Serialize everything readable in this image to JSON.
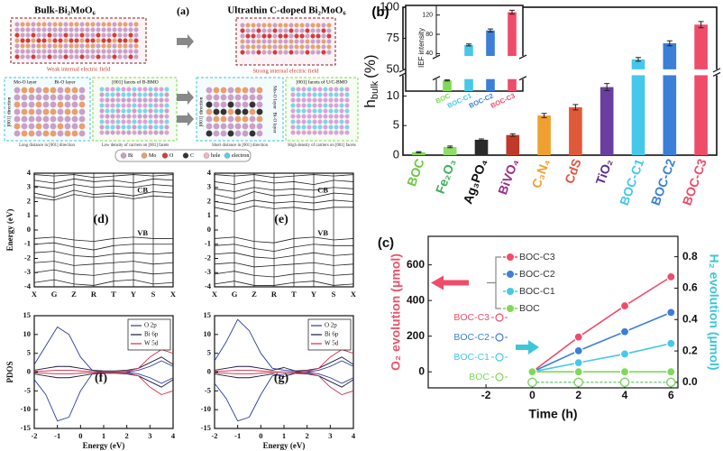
{
  "diagram": {
    "panel_label": "(a)",
    "titles": [
      "Bulk-Bi₂MoO₆",
      "Ultrathin C-doped Bi₂MoO₆"
    ],
    "fields": [
      "Weak internal electric field",
      "Strong internal electric field"
    ],
    "layers": [
      "Mo-O layer",
      "Bi-O layer",
      "Mo-O layer",
      "Bi-O layer"
    ],
    "direction": [
      "[001] direction",
      "[001] direction"
    ],
    "facets": [
      "[001] facets of B-BMO",
      "[001] facets of U/C-BMO"
    ],
    "captions": [
      "Long distance in [001] direction",
      "Low density of carriers on [001] facets",
      "Short distance in [001] direction",
      "High density of carriers on [001] facets"
    ],
    "legend": [
      "Bi",
      "Mo",
      "O",
      "C",
      "hole",
      "electron"
    ]
  },
  "chart_data": [
    {
      "type": "bar",
      "panel_label": "(b)",
      "y_label": {
        "symbol": "h",
        "subscript": "bulk",
        "unit": "(%)"
      },
      "categories": [
        "BOC",
        "Fe₂O₃",
        "Ag₃PO₄",
        "BiVO₄",
        "C₃N₄",
        "CdS",
        "TiO₂",
        "BOC-C1",
        "BOC-C2",
        "BOC-C3"
      ],
      "values": [
        0.5,
        1.4,
        2.6,
        3.4,
        6.7,
        8.1,
        11.5,
        58,
        71,
        86
      ],
      "errors": [
        0.1,
        0.15,
        0.15,
        0.2,
        0.35,
        0.45,
        0.6,
        1.5,
        2,
        2.5
      ],
      "colors": [
        "#7ed957",
        "#8fdc6a",
        "#2a2a2a",
        "#c0392b",
        "#f0a030",
        "#e05a3a",
        "#6a3ea1",
        "#45c8ea",
        "#3b7fd6",
        "#ef4c6a"
      ],
      "label_colors": [
        "#6cc644",
        "#3fae5a",
        "#111111",
        "#9b2d8a",
        "#f0a030",
        "#e0553a",
        "#5b2d91",
        "#45c8ea",
        "#3b7fd6",
        "#ef4c6a"
      ],
      "ylim": [
        0,
        100
      ],
      "y_break": [
        13.5,
        50
      ],
      "yticks": [
        0,
        5,
        10,
        50,
        75,
        100
      ]
    },
    {
      "type": "bar",
      "y_label": "IEF intensity",
      "categories": [
        "BOC",
        "BOC-C1",
        "BOC-C2",
        "BOC-C3"
      ],
      "values": [
        18,
        58,
        88,
        126
      ],
      "errors": [
        1,
        2,
        3,
        4
      ],
      "colors": [
        "#7ed957",
        "#45c8ea",
        "#3b7fd6",
        "#ef4c6a"
      ],
      "ylim": [
        0,
        140
      ],
      "y_break": [
        20,
        35
      ],
      "yticks": [
        40,
        80,
        120
      ]
    },
    {
      "type": "line",
      "panel_label": "(c)",
      "x_label": "Time (h)",
      "y_label": "O₂ evolution (μmol)",
      "y_label_color": "#e8546b",
      "y2_label": "H₂ evolution (μmol)",
      "y2_label_color": "#3cc7d8",
      "x": [
        0,
        2,
        4,
        6
      ],
      "xlim": [
        -4.5,
        6.3
      ],
      "xticks": [
        -2,
        0,
        2,
        4,
        6
      ],
      "ylim": [
        -90,
        760
      ],
      "yticks": [
        0,
        200,
        400,
        600
      ],
      "y2lim": [
        -0.035,
        0.93
      ],
      "y2ticks": [
        {
          "value": 0,
          "label": "0.0"
        },
        0.2,
        0.4,
        0.6,
        0.8
      ],
      "legend": "center",
      "series": [
        {
          "name": "BOC-C3",
          "color": "#ef4c6a",
          "marker": "filled",
          "values": [
            0,
            195,
            370,
            533
          ]
        },
        {
          "name": "BOC-C2",
          "color": "#3b7fd6",
          "marker": "filled",
          "values": [
            0,
            118,
            225,
            333
          ]
        },
        {
          "name": "BOC-C1",
          "color": "#45c8ea",
          "marker": "filled",
          "values": [
            0,
            51,
            100,
            159
          ]
        },
        {
          "name": "BOC",
          "color": "#7ed957",
          "marker": "filled",
          "values": [
            0,
            0,
            0,
            0
          ]
        },
        {
          "name": "BOC-C3",
          "color": "#ef4c6a",
          "marker": "open",
          "axis": "y2",
          "values": [
            0,
            0,
            0,
            0
          ]
        },
        {
          "name": "BOC-C2",
          "color": "#3b7fd6",
          "marker": "open",
          "axis": "y2",
          "values": [
            0,
            0,
            0,
            0
          ]
        },
        {
          "name": "BOC-C1",
          "color": "#45c8ea",
          "marker": "open",
          "axis": "y2",
          "values": [
            0,
            0,
            0,
            0
          ]
        },
        {
          "name": "BOC",
          "color": "#7ed957",
          "marker": "open",
          "axis": "y2",
          "values": [
            0,
            0,
            0,
            0
          ]
        }
      ]
    },
    {
      "type": "line",
      "panel_label": "(d)",
      "y_label": "Energy (eV)",
      "categories": [
        "X",
        "G",
        "Z",
        "R",
        "T",
        "Y",
        "S",
        "X"
      ],
      "ylim": [
        -4,
        4
      ],
      "yticks": [
        -4,
        -3,
        -2,
        -1,
        0,
        1,
        2,
        3,
        4
      ],
      "grid": true,
      "annotations": [
        "CB",
        "VB"
      ],
      "series": [
        {
          "color": "#222222",
          "values": [
            3.9,
            3.8,
            3.9,
            3.7,
            3.8,
            3.9,
            3.8,
            3.9
          ]
        },
        {
          "color": "#222222",
          "values": [
            3.5,
            3.3,
            3.6,
            3.4,
            3.5,
            3.3,
            3.6,
            3.5
          ]
        },
        {
          "color": "#222222",
          "values": [
            3.1,
            2.9,
            3.2,
            3.0,
            3.1,
            3.0,
            3.2,
            3.1
          ]
        },
        {
          "color": "#222222",
          "values": [
            2.6,
            2.3,
            2.8,
            2.5,
            2.6,
            2.4,
            2.7,
            2.6
          ]
        },
        {
          "color": "#222222",
          "values": [
            2.3,
            2.1,
            2.5,
            2.3,
            2.4,
            2.2,
            2.4,
            2.3
          ]
        },
        {
          "color": "#222222",
          "values": [
            -0.6,
            -0.5,
            -0.7,
            -0.8,
            -0.6,
            -0.5,
            -0.6,
            -0.6
          ]
        },
        {
          "color": "#222222",
          "values": [
            -1.0,
            -0.9,
            -1.2,
            -1.4,
            -1.1,
            -1.0,
            -1.0,
            -1.0
          ]
        },
        {
          "color": "#222222",
          "values": [
            -1.6,
            -1.5,
            -1.8,
            -1.9,
            -1.7,
            -1.6,
            -1.7,
            -1.6
          ]
        },
        {
          "color": "#222222",
          "values": [
            -2.3,
            -2.2,
            -2.5,
            -2.4,
            -2.3,
            -2.2,
            -2.4,
            -2.3
          ]
        },
        {
          "color": "#222222",
          "values": [
            -3.0,
            -2.8,
            -3.1,
            -3.2,
            -3.0,
            -2.9,
            -3.1,
            -3.0
          ]
        },
        {
          "color": "#222222",
          "values": [
            -3.7,
            -3.5,
            -3.8,
            -3.9,
            -3.6,
            -3.5,
            -3.8,
            -3.7
          ]
        }
      ]
    },
    {
      "type": "line",
      "panel_label": "(e)",
      "categories": [
        "X",
        "G",
        "Z",
        "R",
        "T",
        "Y",
        "S",
        "X"
      ],
      "ylim": [
        -4,
        4
      ],
      "yticks": [
        -4,
        -3,
        -2,
        -1,
        0,
        1,
        2,
        3,
        4
      ],
      "grid": true,
      "annotations": [
        "CB",
        "VB"
      ],
      "series": [
        {
          "color": "#222222",
          "values": [
            3.9,
            3.8,
            3.9,
            3.7,
            3.8,
            3.9,
            3.8,
            3.9
          ]
        },
        {
          "color": "#222222",
          "values": [
            3.4,
            3.2,
            3.5,
            3.3,
            3.4,
            3.2,
            3.5,
            3.4
          ]
        },
        {
          "color": "#222222",
          "values": [
            2.9,
            2.7,
            3.0,
            2.8,
            2.9,
            2.8,
            3.0,
            2.9
          ]
        },
        {
          "color": "#222222",
          "values": [
            2.5,
            2.2,
            2.7,
            2.4,
            2.5,
            2.3,
            2.6,
            2.5
          ]
        },
        {
          "color": "#222222",
          "values": [
            2.0,
            1.8,
            2.1,
            1.9,
            2.0,
            1.9,
            2.1,
            2.0
          ]
        },
        {
          "color": "#222222",
          "values": [
            1.6,
            1.3,
            1.7,
            1.5,
            1.6,
            1.4,
            1.6,
            1.6
          ]
        },
        {
          "color": "#222222",
          "values": [
            -0.6,
            -0.5,
            -0.8,
            -0.9,
            -0.6,
            -0.5,
            -0.7,
            -0.6
          ]
        },
        {
          "color": "#222222",
          "values": [
            -1.1,
            -1.0,
            -1.3,
            -1.5,
            -1.2,
            -1.0,
            -1.1,
            -1.1
          ]
        },
        {
          "color": "#222222",
          "values": [
            -1.7,
            -1.6,
            -1.9,
            -2.0,
            -1.8,
            -1.6,
            -1.8,
            -1.7
          ]
        },
        {
          "color": "#222222",
          "values": [
            -2.4,
            -2.3,
            -2.6,
            -2.5,
            -2.4,
            -2.3,
            -2.5,
            -2.4
          ]
        },
        {
          "color": "#222222",
          "values": [
            -3.1,
            -2.9,
            -3.2,
            -3.3,
            -3.1,
            -3.0,
            -3.2,
            -3.1
          ]
        },
        {
          "color": "#222222",
          "values": [
            -3.8,
            -3.6,
            -3.9,
            -3.9,
            -3.7,
            -3.6,
            -3.9,
            -3.8
          ]
        }
      ]
    },
    {
      "type": "line",
      "panel_label": "(f)",
      "x_label": "Energy (eV)",
      "y_label": "PDOS",
      "x": [
        -2,
        -1.5,
        -1,
        -0.5,
        0,
        0.5,
        1,
        1.5,
        2,
        2.5,
        3,
        3.5,
        4
      ],
      "xlim": [
        -2,
        4
      ],
      "xticks": [
        -2,
        -1,
        0,
        1,
        2,
        3,
        4
      ],
      "ylim": [
        -15,
        15
      ],
      "yticks": [
        -15,
        -10,
        -5,
        0,
        5,
        10,
        15
      ],
      "legend": "upper right",
      "series": [
        {
          "name": "O 2p",
          "color": "#2b3a9e",
          "values": [
            2,
            7,
            12,
            10,
            4,
            0.5,
            0,
            0,
            0,
            0.5,
            1.5,
            3,
            1.5
          ],
          "values_down": [
            -2,
            -6,
            -13,
            -12,
            -5,
            -0.5,
            0,
            0,
            0,
            -0.5,
            -1.5,
            -3,
            -1.5
          ]
        },
        {
          "name": "Bi 6p",
          "color": "#1a1a3a",
          "values": [
            0.5,
            1,
            1.5,
            1.5,
            1,
            0.5,
            0.3,
            0.3,
            0.5,
            1,
            2.5,
            4,
            2
          ],
          "values_down": [
            -0.5,
            -1,
            -1.5,
            -1.5,
            -1,
            -0.5,
            -0.3,
            -0.3,
            -0.5,
            -1,
            -2.5,
            -4,
            -2
          ]
        },
        {
          "name": "W 5d",
          "color": "#d62c4a",
          "values": [
            0.2,
            0.3,
            0.5,
            0.5,
            0.3,
            0.1,
            0,
            0,
            0.2,
            1,
            4,
            6,
            5
          ],
          "values_down": [
            -0.2,
            -0.3,
            -0.5,
            -0.5,
            -0.3,
            -0.1,
            0,
            0,
            -0.2,
            -1,
            -4,
            -6,
            -5
          ]
        }
      ]
    },
    {
      "type": "line",
      "panel_label": "(g)",
      "x_label": "Energy (eV)",
      "x": [
        -2,
        -1.5,
        -1,
        -0.5,
        0,
        0.5,
        1,
        1.5,
        2,
        2.5,
        3,
        3.5,
        4
      ],
      "xlim": [
        -2,
        4
      ],
      "xticks": [
        -2,
        -1,
        0,
        1,
        2,
        3,
        4
      ],
      "ylim": [
        -15,
        15
      ],
      "yticks": [
        -15,
        -10,
        -5,
        0,
        5,
        10,
        15
      ],
      "legend": "upper right",
      "series": [
        {
          "name": "O 2p",
          "color": "#2b3a9e",
          "values": [
            3,
            8,
            14,
            11,
            5,
            1,
            0.5,
            0.3,
            0,
            0.5,
            1.5,
            3,
            1.5
          ],
          "values_down": [
            -3,
            -7,
            -13,
            -12,
            -6,
            -1,
            -0.5,
            -0.3,
            0,
            -0.5,
            -1.5,
            -3,
            -1.5
          ]
        },
        {
          "name": "Bi 6p",
          "color": "#1a1a3a",
          "values": [
            0.5,
            1,
            1.5,
            1.5,
            1,
            0.5,
            1.2,
            0.3,
            0.5,
            1,
            2.5,
            4,
            2
          ],
          "values_down": [
            -0.5,
            -1,
            -1.5,
            -1.5,
            -1,
            -0.5,
            -1.2,
            -0.3,
            -0.5,
            -1,
            -2.5,
            -4,
            -2
          ]
        },
        {
          "name": "W 5d",
          "color": "#d62c4a",
          "values": [
            0.2,
            0.3,
            0.5,
            0.5,
            0.3,
            0.1,
            0,
            0,
            0.2,
            1,
            4,
            6,
            5
          ],
          "values_down": [
            -0.2,
            -0.3,
            -0.5,
            -0.5,
            -0.3,
            -0.1,
            0,
            0,
            -0.2,
            -1,
            -4,
            -6,
            -5
          ]
        }
      ]
    }
  ]
}
